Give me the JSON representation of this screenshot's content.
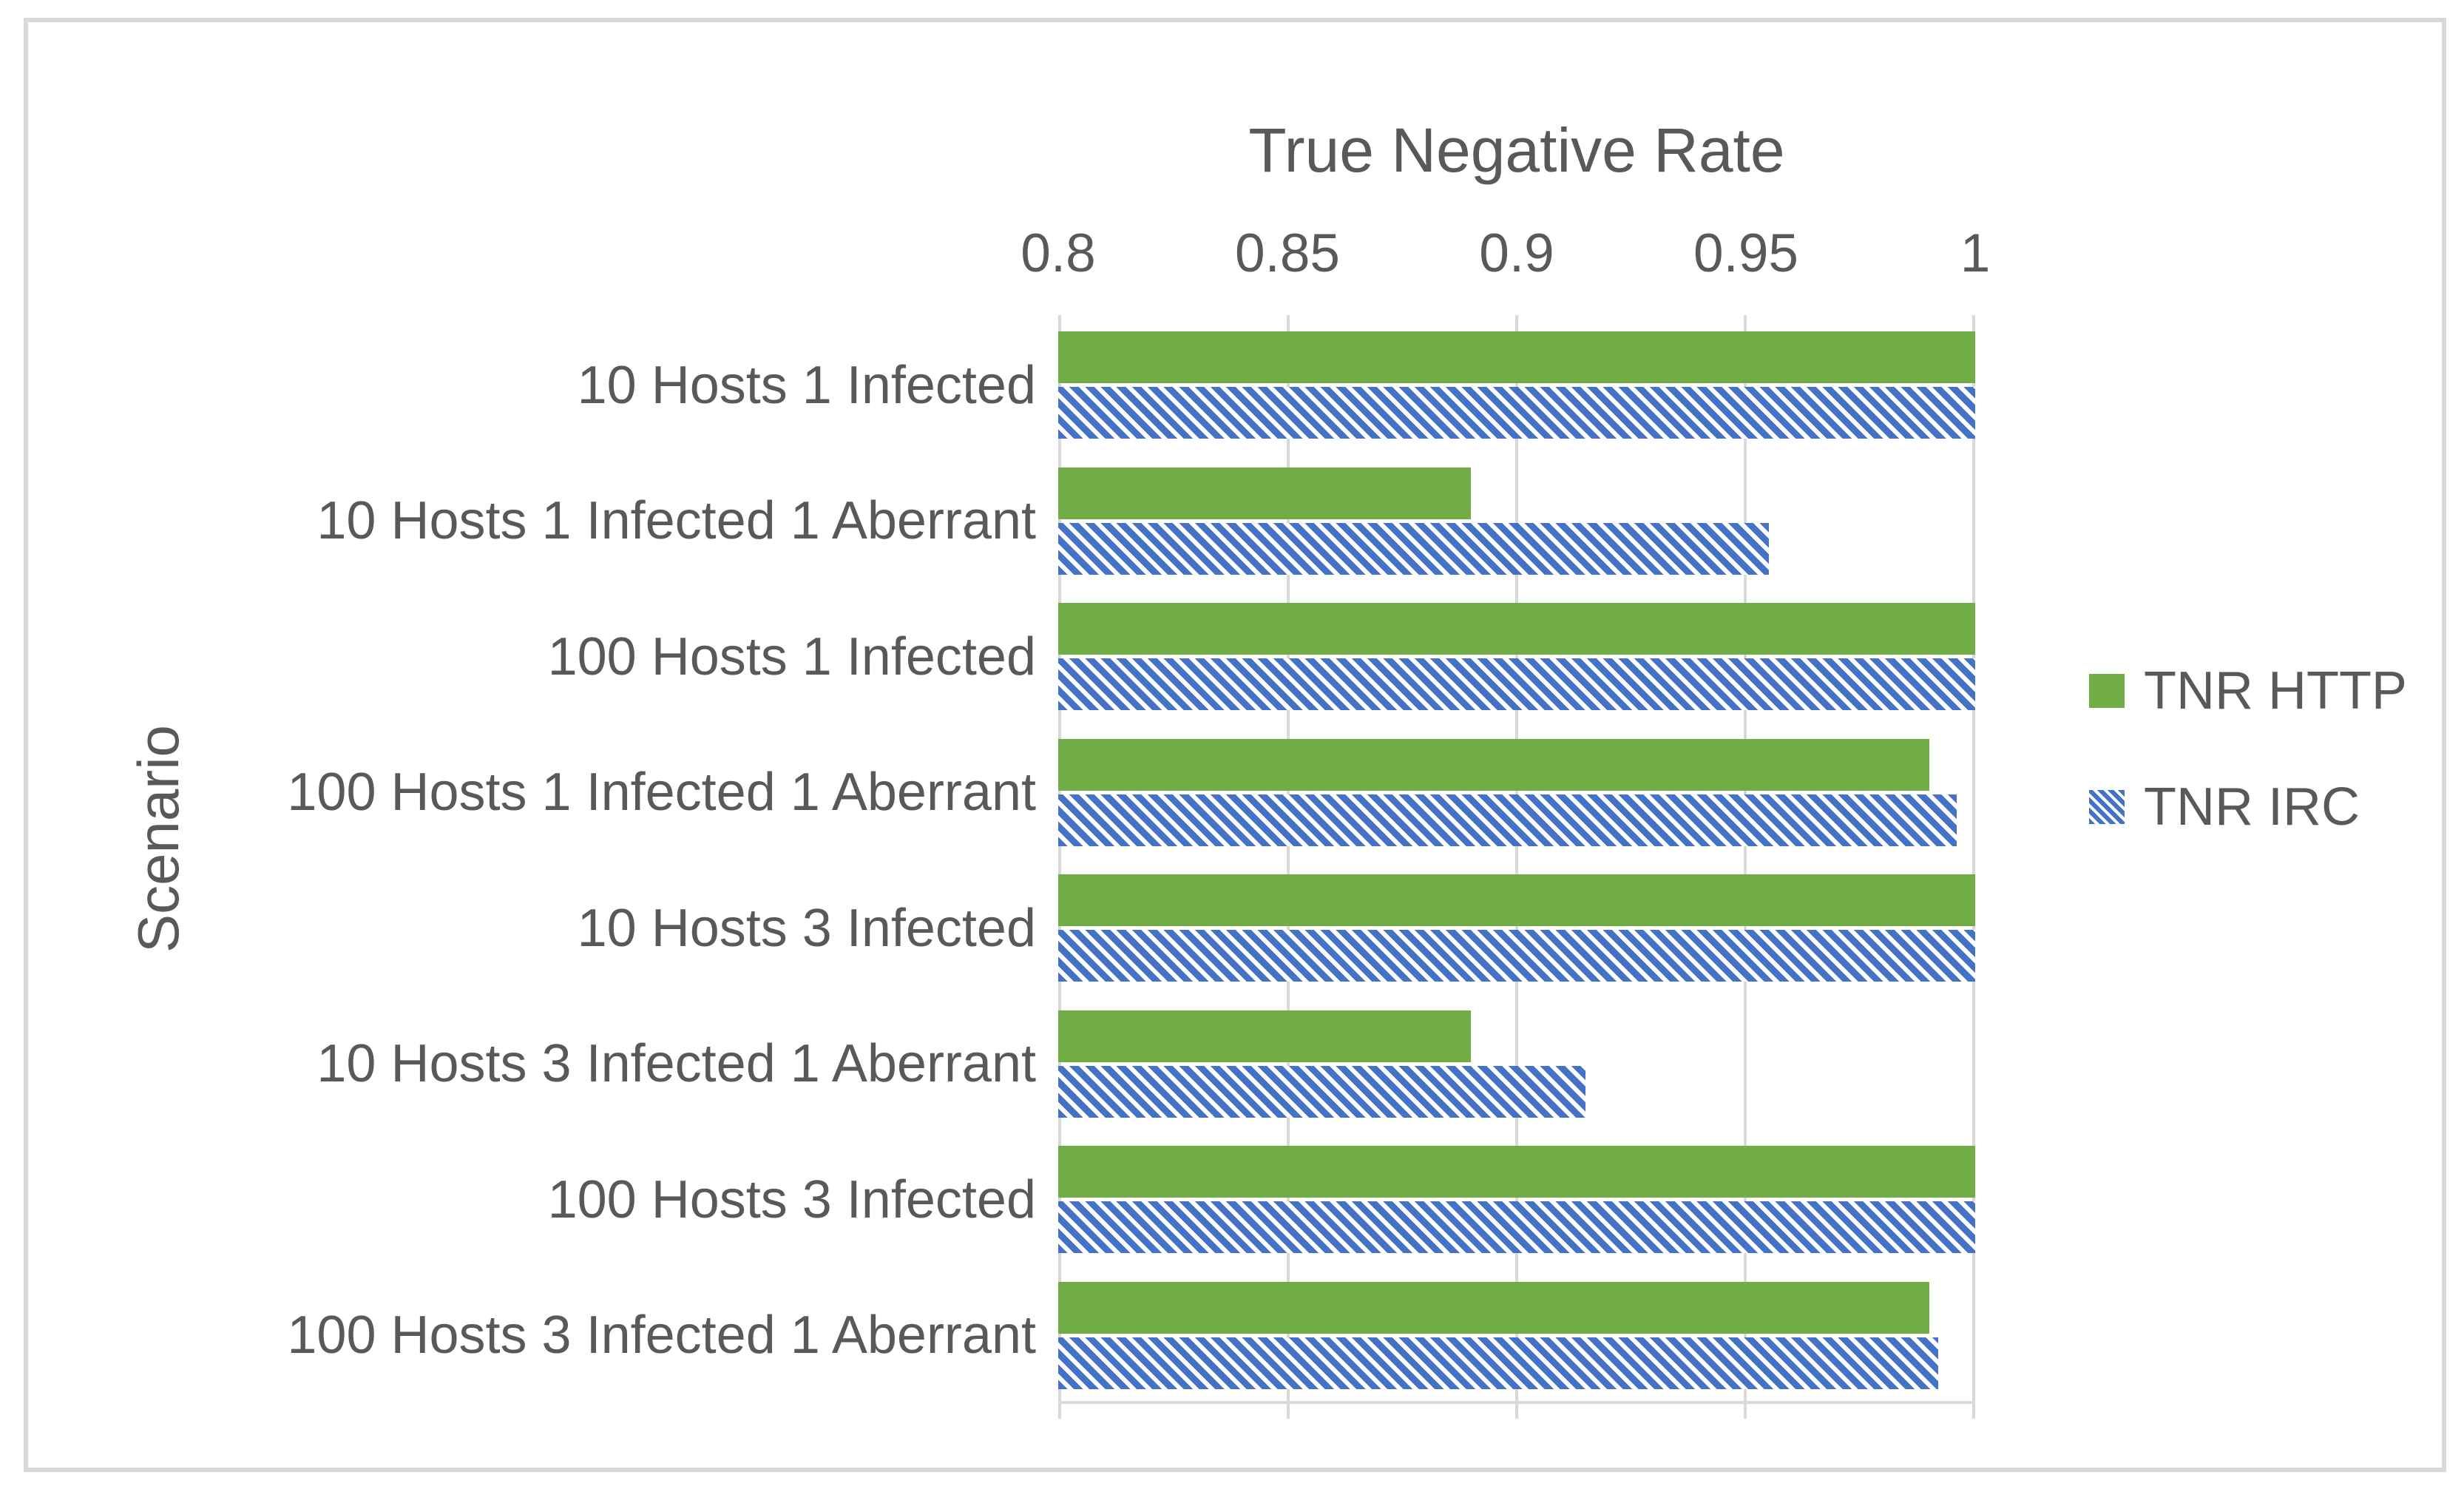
{
  "chart_data": {
    "type": "bar",
    "orientation": "horizontal",
    "title": "True Negative Rate",
    "xlabel": "True Negative Rate",
    "ylabel": "Scenario",
    "xlim": [
      0.8,
      1.0
    ],
    "xticks": [
      0.8,
      0.85,
      0.9,
      0.95,
      1
    ],
    "xtick_labels": [
      "0.8",
      "0.85",
      "0.9",
      "0.95",
      "1"
    ],
    "grid": true,
    "legend_position": "right",
    "categories": [
      "10 Hosts 1 Infected",
      "10 Hosts 1 Infected 1 Aberrant",
      "100 Hosts 1 Infected",
      "100 Hosts 1 Infected 1 Aberrant",
      "10 Hosts 3 Infected",
      "10 Hosts 3 Infected 1 Aberrant",
      "100 Hosts 3 Infected",
      "100 Hosts 3 Infected 1 Aberrant"
    ],
    "series": [
      {
        "name": "TNR HTTP",
        "color": "#70AD47",
        "pattern": "solid",
        "values": [
          1,
          0.89,
          1,
          0.99,
          1,
          0.89,
          1,
          0.99
        ]
      },
      {
        "name": "TNR IRC",
        "color": "#4472C4",
        "pattern": "diagonal-stripes",
        "values": [
          1,
          0.955,
          1,
          0.996,
          1,
          0.915,
          1,
          0.992
        ]
      }
    ]
  },
  "colors": {
    "text": "#595959",
    "gridline": "#D9D9D9",
    "frame_border": "#D9D9D9",
    "background": "#FFFFFF",
    "http_green": "#70AD47",
    "irc_blue": "#4472C4"
  }
}
